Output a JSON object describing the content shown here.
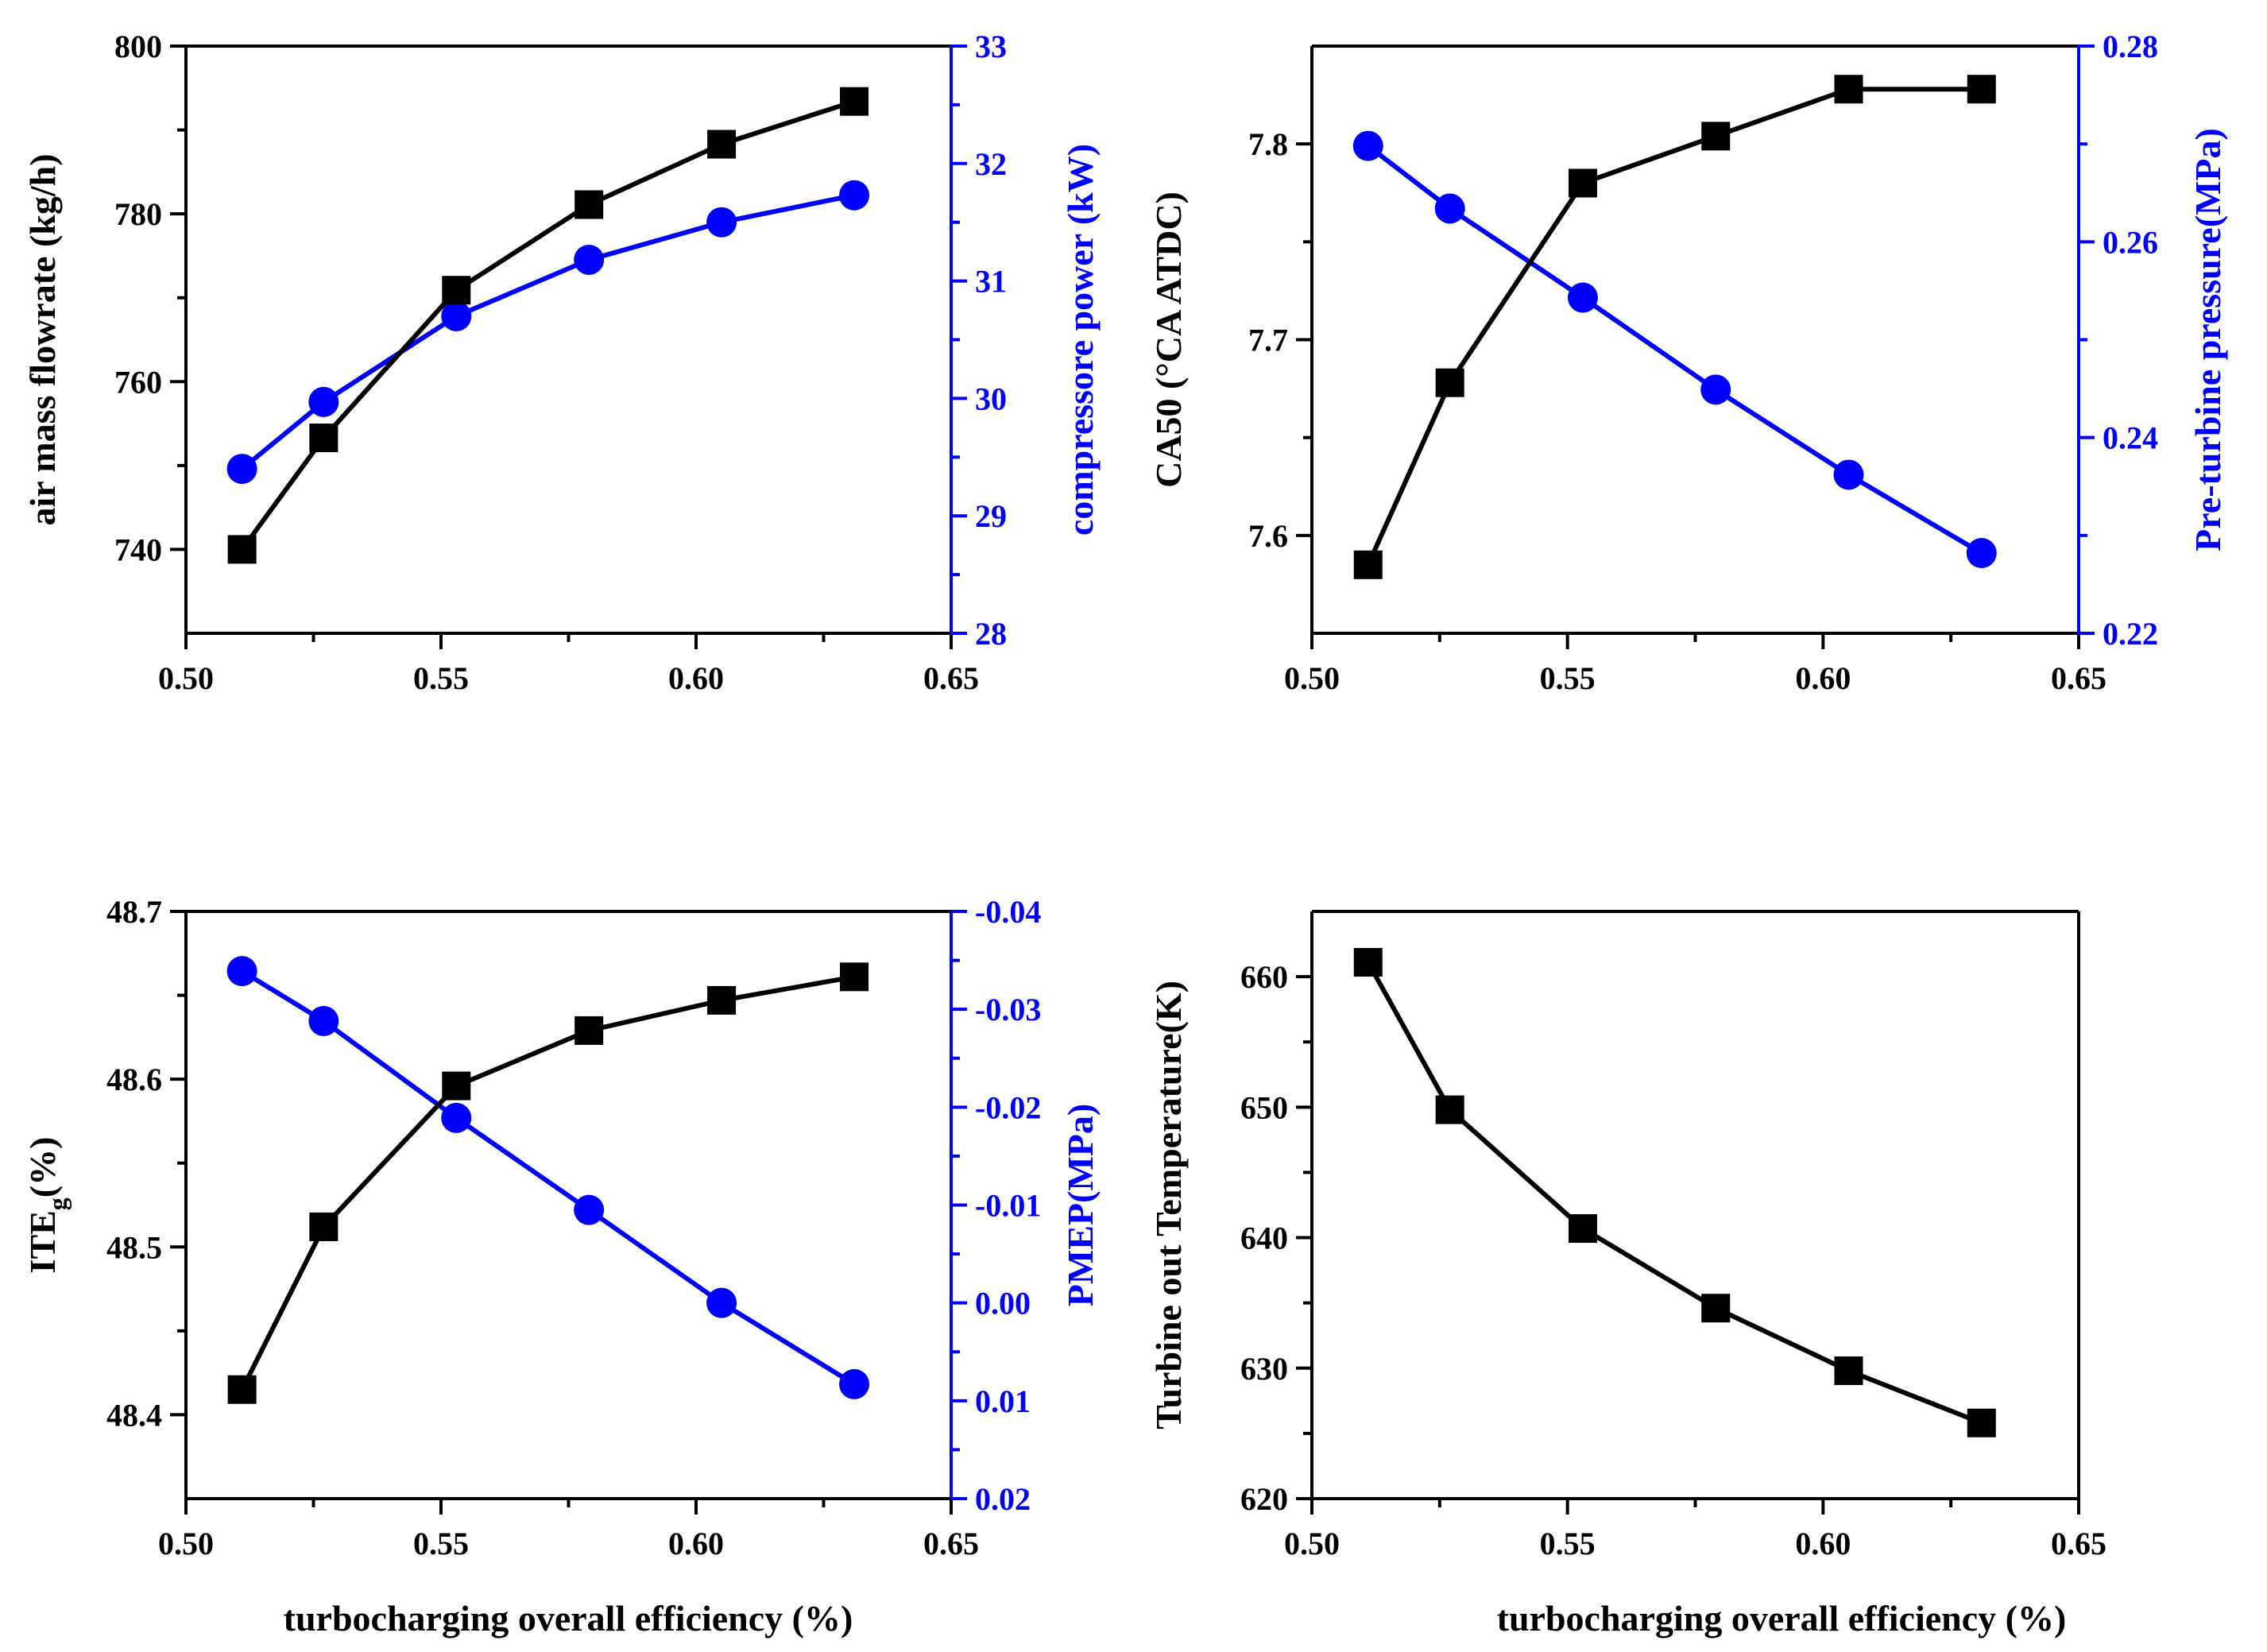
{
  "colors": {
    "black": "#000000",
    "blue": "#0000ff"
  },
  "x_axis_title": "turbocharging overall efficiency (%)",
  "chart_data": [
    {
      "type": "line",
      "id": "p1",
      "x": [
        0.511,
        0.527,
        0.553,
        0.579,
        0.605,
        0.631
      ],
      "xlim": [
        0.5,
        0.65
      ],
      "xticks": [
        "0.50",
        "0.55",
        "0.60",
        "0.65"
      ],
      "left": {
        "label": "air mass flowrate (kg/h)",
        "ylim": [
          730,
          800
        ],
        "ticks": [
          "740",
          "760",
          "780",
          "800"
        ],
        "values": [
          740.0,
          753.3,
          770.9,
          781.1,
          788.3,
          793.4
        ],
        "marker": "square",
        "color": "#000000"
      },
      "right": {
        "label": "compressore power (kW)",
        "ylim": [
          28,
          33
        ],
        "ticks": [
          "28",
          "29",
          "30",
          "31",
          "32",
          "33"
        ],
        "values": [
          29.4,
          29.97,
          30.7,
          31.18,
          31.5,
          31.73
        ],
        "marker": "circle",
        "color": "#0000ff"
      }
    },
    {
      "type": "line",
      "id": "p2",
      "x": [
        0.511,
        0.527,
        0.553,
        0.579,
        0.605,
        0.631
      ],
      "xlim": [
        0.5,
        0.65
      ],
      "xticks": [
        "0.50",
        "0.55",
        "0.60",
        "0.65"
      ],
      "left": {
        "label": "CA50 (°CA ATDC)",
        "ylim": [
          7.55,
          7.85
        ],
        "ticks": [
          "7.6",
          "7.7",
          "7.8"
        ],
        "values": [
          7.585,
          7.678,
          7.78,
          7.804,
          7.828,
          7.828
        ],
        "marker": "square",
        "color": "#000000"
      },
      "right": {
        "label": "Pre-turbine pressure(MPa)",
        "ylim": [
          0.22,
          0.28
        ],
        "ticks": [
          "0.22",
          "0.24",
          "0.26",
          "0.28"
        ],
        "values": [
          0.2698,
          0.2634,
          0.2543,
          0.2449,
          0.2362,
          0.2282
        ],
        "marker": "circle",
        "color": "#0000ff"
      }
    },
    {
      "type": "line",
      "id": "p3",
      "x": [
        0.511,
        0.527,
        0.553,
        0.579,
        0.605,
        0.631
      ],
      "xlim": [
        0.5,
        0.65
      ],
      "xticks": [
        "0.50",
        "0.55",
        "0.60",
        "0.65"
      ],
      "left": {
        "label": "ITE",
        "label_sub": "g",
        "label_suffix": "(%)",
        "ylim": [
          48.35,
          48.7
        ],
        "ticks": [
          "48.4",
          "48.5",
          "48.6",
          "48.7"
        ],
        "values": [
          48.415,
          48.512,
          48.596,
          48.629,
          48.647,
          48.661
        ],
        "marker": "square",
        "color": "#000000"
      },
      "right": {
        "label": "PMEP(MPa)",
        "ylim": [
          -0.04,
          0.02
        ],
        "inverted": true,
        "ticks": [
          "-0.04",
          "-0.03",
          "-0.02",
          "-0.01",
          "0.00",
          "0.01",
          "0.02"
        ],
        "values": [
          -0.0339,
          -0.0288,
          -0.0189,
          -0.0095,
          0.0,
          0.0083
        ],
        "marker": "circle",
        "color": "#0000ff"
      }
    },
    {
      "type": "line",
      "id": "p4",
      "x": [
        0.511,
        0.527,
        0.553,
        0.579,
        0.605,
        0.631
      ],
      "xlim": [
        0.5,
        0.65
      ],
      "xticks": [
        "0.50",
        "0.55",
        "0.60",
        "0.65"
      ],
      "left": {
        "label": "Turbine out Temperature(K)",
        "ylim": [
          620,
          665
        ],
        "ticks": [
          "620",
          "630",
          "640",
          "650",
          "660"
        ],
        "values": [
          661.1,
          649.8,
          640.7,
          634.6,
          629.8,
          625.8
        ],
        "marker": "square",
        "color": "#000000"
      }
    }
  ]
}
